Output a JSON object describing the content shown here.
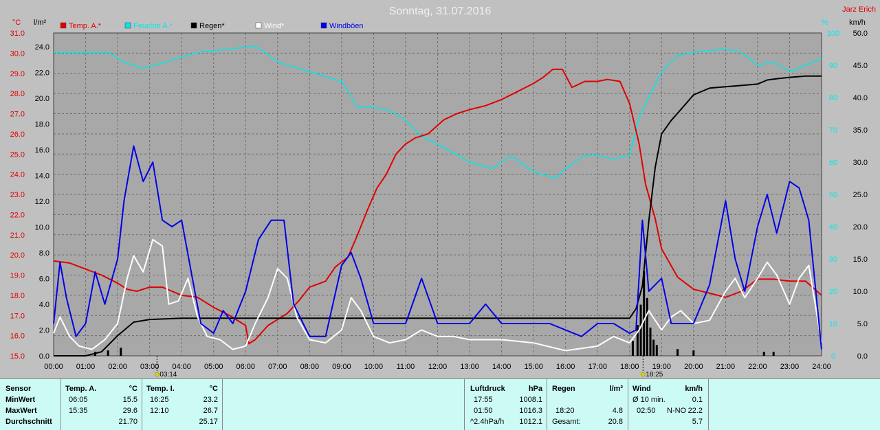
{
  "title": "Sonntag, 31.07.2016",
  "author": "Jarz Erich",
  "units": {
    "left_temp": "°C",
    "left_rain": "l/m²",
    "right_hum": "%",
    "right_wind": "km/h"
  },
  "legend": [
    {
      "label": "Temp. A.*",
      "color": "#e00000"
    },
    {
      "label": "Feuchte A.*",
      "color": "#00e8e8"
    },
    {
      "label": "Regen*",
      "color": "#000000"
    },
    {
      "label": "Wind*",
      "color": "#ffffff"
    },
    {
      "label": "Windböen",
      "color": "#0000e8"
    }
  ],
  "chart_data": {
    "type": "line",
    "title": "Sonntag, 31.07.2016",
    "x_ticks": [
      "00:00",
      "01:00",
      "02:00",
      "03:00",
      "04:00",
      "05:00",
      "06:00",
      "07:00",
      "08:00",
      "09:00",
      "10:00",
      "11:00",
      "12:00",
      "13:00",
      "14:00",
      "15:00",
      "16:00",
      "17:00",
      "18:00",
      "19:00",
      "20:00",
      "21:00",
      "22:00",
      "23:00",
      "24:00"
    ],
    "x_range_hours": [
      0,
      24
    ],
    "y_temp_ticks": [
      "31.0",
      "30.0",
      "29.0",
      "28.0",
      "27.0",
      "26.0",
      "25.0",
      "24.0",
      "23.0",
      "22.0",
      "21.0",
      "20.0",
      "19.0",
      "18.0",
      "17.0",
      "16.0",
      "15.0"
    ],
    "y_temp_range": [
      15,
      31
    ],
    "y_rain_ticks": [
      "24.0",
      "22.0",
      "20.0",
      "18.0",
      "16.0",
      "14.0",
      "12.0",
      "10.0",
      "8.0",
      "6.0",
      "4.0",
      "2.0",
      "0.0"
    ],
    "y_rain_range": [
      0,
      24
    ],
    "y_hum_ticks": [
      "100",
      "90",
      "80",
      "70",
      "60",
      "50",
      "40",
      "30",
      "20",
      "10",
      "0"
    ],
    "y_hum_range": [
      0,
      100
    ],
    "y_wind_ticks": [
      "50.0",
      "45.0",
      "40.0",
      "35.0",
      "30.0",
      "25.0",
      "20.0",
      "15.0",
      "10.0",
      "5.0",
      "0.0"
    ],
    "y_wind_range": [
      0,
      50
    ],
    "grid": true,
    "markers": [
      {
        "hour": 3.23,
        "label": "03:14"
      },
      {
        "hour": 18.42,
        "label": "18:25"
      }
    ],
    "series": [
      {
        "name": "Temp. A.*",
        "axis": "temp",
        "color": "#e00000",
        "points": [
          [
            0,
            19.7
          ],
          [
            0.5,
            19.6
          ],
          [
            1,
            19.3
          ],
          [
            1.5,
            19.0
          ],
          [
            2,
            18.6
          ],
          [
            2.3,
            18.3
          ],
          [
            2.6,
            18.2
          ],
          [
            3,
            18.4
          ],
          [
            3.4,
            18.4
          ],
          [
            4,
            18.0
          ],
          [
            4.5,
            17.9
          ],
          [
            5,
            17.4
          ],
          [
            5.5,
            17.0
          ],
          [
            6,
            16.5
          ],
          [
            6.1,
            15.6
          ],
          [
            6.3,
            15.8
          ],
          [
            6.7,
            16.5
          ],
          [
            7,
            16.8
          ],
          [
            7.3,
            17.1
          ],
          [
            7.7,
            17.8
          ],
          [
            8,
            18.4
          ],
          [
            8.5,
            18.7
          ],
          [
            8.8,
            19.4
          ],
          [
            9.2,
            19.9
          ],
          [
            9.5,
            21.0
          ],
          [
            9.8,
            22.2
          ],
          [
            10.1,
            23.3
          ],
          [
            10.4,
            24.0
          ],
          [
            10.7,
            25.0
          ],
          [
            11,
            25.5
          ],
          [
            11.3,
            25.8
          ],
          [
            11.7,
            26.0
          ],
          [
            12.2,
            26.7
          ],
          [
            12.6,
            27.0
          ],
          [
            13,
            27.2
          ],
          [
            13.5,
            27.4
          ],
          [
            14,
            27.7
          ],
          [
            14.5,
            28.1
          ],
          [
            15,
            28.5
          ],
          [
            15.3,
            28.8
          ],
          [
            15.6,
            29.2
          ],
          [
            15.9,
            29.2
          ],
          [
            16.2,
            28.3
          ],
          [
            16.6,
            28.6
          ],
          [
            17,
            28.6
          ],
          [
            17.3,
            28.7
          ],
          [
            17.7,
            28.6
          ],
          [
            18,
            27.5
          ],
          [
            18.3,
            25.5
          ],
          [
            18.5,
            23.5
          ],
          [
            18.8,
            21.8
          ],
          [
            19,
            20.3
          ],
          [
            19.5,
            18.9
          ],
          [
            20,
            18.3
          ],
          [
            20.5,
            18.1
          ],
          [
            21,
            17.9
          ],
          [
            21.5,
            18.2
          ],
          [
            22,
            18.8
          ],
          [
            22.5,
            18.8
          ],
          [
            23,
            18.7
          ],
          [
            23.5,
            18.7
          ],
          [
            24,
            18.0
          ]
        ]
      },
      {
        "name": "Feuchte A.*",
        "axis": "hum",
        "color": "#00e8e8",
        "points": [
          [
            0,
            94
          ],
          [
            1,
            94
          ],
          [
            1.7,
            94
          ],
          [
            2.2,
            91
          ],
          [
            2.8,
            89
          ],
          [
            3.5,
            91
          ],
          [
            4.5,
            94
          ],
          [
            5.5,
            95
          ],
          [
            6.3,
            96
          ],
          [
            6.6,
            94
          ],
          [
            7,
            91
          ],
          [
            8,
            88
          ],
          [
            9,
            85
          ],
          [
            9.5,
            77
          ],
          [
            10,
            77
          ],
          [
            10.5,
            76
          ],
          [
            11,
            73
          ],
          [
            11.5,
            68
          ],
          [
            12.3,
            64
          ],
          [
            13,
            60
          ],
          [
            13.7,
            58
          ],
          [
            14.3,
            62
          ],
          [
            15,
            57
          ],
          [
            15.7,
            55
          ],
          [
            16,
            58
          ],
          [
            16.3,
            60
          ],
          [
            16.6,
            62
          ],
          [
            17,
            62
          ],
          [
            17.5,
            61
          ],
          [
            18,
            62
          ],
          [
            18.3,
            74
          ],
          [
            18.7,
            82
          ],
          [
            19,
            88
          ],
          [
            19.5,
            93
          ],
          [
            20,
            94
          ],
          [
            21,
            95
          ],
          [
            21.5,
            94
          ],
          [
            22,
            90
          ],
          [
            22.5,
            91
          ],
          [
            23,
            88
          ],
          [
            23.5,
            90
          ],
          [
            24,
            92
          ]
        ]
      },
      {
        "name": "Regen*",
        "axis": "rain",
        "color": "#000000",
        "points": [
          [
            0,
            0
          ],
          [
            1,
            0
          ],
          [
            1.5,
            0.3
          ],
          [
            2,
            1.5
          ],
          [
            2.5,
            2.5
          ],
          [
            3,
            2.7
          ],
          [
            4,
            2.8
          ],
          [
            5,
            2.8
          ],
          [
            10,
            2.8
          ],
          [
            18,
            2.8
          ],
          [
            18.2,
            3.5
          ],
          [
            18.4,
            5.2
          ],
          [
            18.6,
            10
          ],
          [
            18.8,
            14
          ],
          [
            19,
            16.5
          ],
          [
            19.3,
            17.5
          ],
          [
            19.6,
            18.3
          ],
          [
            20,
            19.4
          ],
          [
            20.5,
            19.9
          ],
          [
            21,
            20
          ],
          [
            21.5,
            20.1
          ],
          [
            22,
            20.2
          ],
          [
            22.3,
            20.5
          ],
          [
            22.6,
            20.6
          ],
          [
            23,
            20.7
          ],
          [
            23.5,
            20.8
          ],
          [
            24,
            20.8
          ]
        ]
      },
      {
        "name": "Wind*",
        "axis": "wind",
        "color": "#ffffff",
        "points": [
          [
            0,
            3.5
          ],
          [
            0.2,
            6
          ],
          [
            0.5,
            3
          ],
          [
            0.8,
            1.5
          ],
          [
            1.2,
            1
          ],
          [
            1.6,
            2.5
          ],
          [
            2,
            5
          ],
          [
            2.3,
            12
          ],
          [
            2.5,
            15.5
          ],
          [
            2.8,
            13
          ],
          [
            3.1,
            18
          ],
          [
            3.4,
            17
          ],
          [
            3.6,
            8
          ],
          [
            3.9,
            8.5
          ],
          [
            4.2,
            12
          ],
          [
            4.5,
            6
          ],
          [
            4.8,
            3
          ],
          [
            5.2,
            2.5
          ],
          [
            5.6,
            1
          ],
          [
            6,
            1.5
          ],
          [
            6.3,
            5
          ],
          [
            6.7,
            9
          ],
          [
            7,
            13.5
          ],
          [
            7.3,
            12
          ],
          [
            7.6,
            6
          ],
          [
            8,
            2.5
          ],
          [
            8.5,
            2
          ],
          [
            9,
            4
          ],
          [
            9.3,
            9
          ],
          [
            9.6,
            7
          ],
          [
            10,
            3
          ],
          [
            10.5,
            2
          ],
          [
            11,
            2.5
          ],
          [
            11.5,
            4
          ],
          [
            12,
            3
          ],
          [
            12.5,
            3
          ],
          [
            13,
            2.5
          ],
          [
            14,
            2.5
          ],
          [
            15,
            2
          ],
          [
            16,
            0.8
          ],
          [
            17,
            1.5
          ],
          [
            17.5,
            3
          ],
          [
            18,
            2
          ],
          [
            18.3,
            4
          ],
          [
            18.6,
            7
          ],
          [
            19,
            4
          ],
          [
            19.3,
            6
          ],
          [
            19.6,
            7
          ],
          [
            20,
            5
          ],
          [
            20.5,
            5.5
          ],
          [
            21,
            10
          ],
          [
            21.3,
            12
          ],
          [
            21.6,
            9
          ],
          [
            22,
            12
          ],
          [
            22.3,
            14.5
          ],
          [
            22.6,
            12.5
          ],
          [
            23,
            8
          ],
          [
            23.3,
            12
          ],
          [
            23.6,
            14
          ],
          [
            24,
            2
          ]
        ]
      },
      {
        "name": "Windböen",
        "axis": "wind",
        "color": "#0000e8",
        "points": [
          [
            0,
            5
          ],
          [
            0.2,
            14.5
          ],
          [
            0.4,
            9
          ],
          [
            0.7,
            3
          ],
          [
            1,
            5
          ],
          [
            1.3,
            13
          ],
          [
            1.6,
            8
          ],
          [
            2,
            15
          ],
          [
            2.2,
            24
          ],
          [
            2.5,
            32.5
          ],
          [
            2.8,
            27
          ],
          [
            3.1,
            30
          ],
          [
            3.4,
            21
          ],
          [
            3.7,
            20
          ],
          [
            4,
            21
          ],
          [
            4.3,
            13
          ],
          [
            4.6,
            5
          ],
          [
            5,
            3.5
          ],
          [
            5.3,
            7
          ],
          [
            5.6,
            5
          ],
          [
            6,
            10
          ],
          [
            6.4,
            18
          ],
          [
            6.8,
            21
          ],
          [
            7.2,
            21
          ],
          [
            7.5,
            8
          ],
          [
            8,
            3
          ],
          [
            8.5,
            3
          ],
          [
            9,
            14
          ],
          [
            9.3,
            16
          ],
          [
            9.6,
            12
          ],
          [
            10,
            5
          ],
          [
            10.5,
            5
          ],
          [
            11,
            5
          ],
          [
            11.5,
            12
          ],
          [
            12,
            5
          ],
          [
            12.5,
            5
          ],
          [
            13,
            5
          ],
          [
            13.5,
            8
          ],
          [
            14,
            5
          ],
          [
            14.5,
            5
          ],
          [
            15,
            5
          ],
          [
            15.5,
            5
          ],
          [
            16,
            4
          ],
          [
            16.5,
            3
          ],
          [
            17,
            5
          ],
          [
            17.5,
            5
          ],
          [
            18,
            3.5
          ],
          [
            18.2,
            4
          ],
          [
            18.4,
            21
          ],
          [
            18.6,
            10
          ],
          [
            19,
            12
          ],
          [
            19.3,
            5
          ],
          [
            19.6,
            5
          ],
          [
            20,
            5
          ],
          [
            20.5,
            11
          ],
          [
            21,
            24
          ],
          [
            21.3,
            15
          ],
          [
            21.6,
            10
          ],
          [
            22,
            20
          ],
          [
            22.3,
            25
          ],
          [
            22.6,
            19
          ],
          [
            23,
            27
          ],
          [
            23.3,
            26
          ],
          [
            23.6,
            21
          ],
          [
            24,
            1
          ]
        ]
      }
    ],
    "rain_bars": [
      [
        1.3,
        0.3
      ],
      [
        1.7,
        0.4
      ],
      [
        2.1,
        0.6
      ],
      [
        18.1,
        1.1
      ],
      [
        18.25,
        2.3
      ],
      [
        18.35,
        3.8
      ],
      [
        18.45,
        6.3
      ],
      [
        18.55,
        4.3
      ],
      [
        18.65,
        2.1
      ],
      [
        18.75,
        1.2
      ],
      [
        18.85,
        0.8
      ],
      [
        19.5,
        0.5
      ],
      [
        20.0,
        0.4
      ],
      [
        22.2,
        0.3
      ],
      [
        22.5,
        0.3
      ]
    ]
  },
  "stats": {
    "sensor": {
      "header": "Sensor",
      "rows": [
        "MinWert",
        "MaxWert",
        "Durchschnitt"
      ]
    },
    "temp_a": {
      "header": "Temp. A.",
      "unit": "°C",
      "min_time": "06:05",
      "min_val": "15.5",
      "max_time": "15:35",
      "max_val": "29.6",
      "avg": "21.70"
    },
    "temp_i": {
      "header": "Temp. I.",
      "unit": "°C",
      "min_time": "16:25",
      "min_val": "23.2",
      "max_time": "12:10",
      "max_val": "26.7",
      "avg": "25.17"
    },
    "pressure": {
      "header": "Luftdruck",
      "unit": "hPa",
      "min_time": "17:55",
      "min_val": "1008.1",
      "max_time": "01:50",
      "max_val": "1016.3",
      "trend": "^2.4hPa/h",
      "avg": "1012.1"
    },
    "rain": {
      "header": "Regen",
      "unit": "l/m²",
      "time": "18:20",
      "val": "4.8",
      "total_label": "Gesamt:",
      "total": "20.8"
    },
    "wind": {
      "header": "Wind",
      "unit": "km/h",
      "avg10_label": "Ø 10 min.",
      "avg10": "0.1",
      "max_time": "02:50",
      "max_dir": "N-NO",
      "max_val": "22.2",
      "avg": "5.7"
    }
  }
}
